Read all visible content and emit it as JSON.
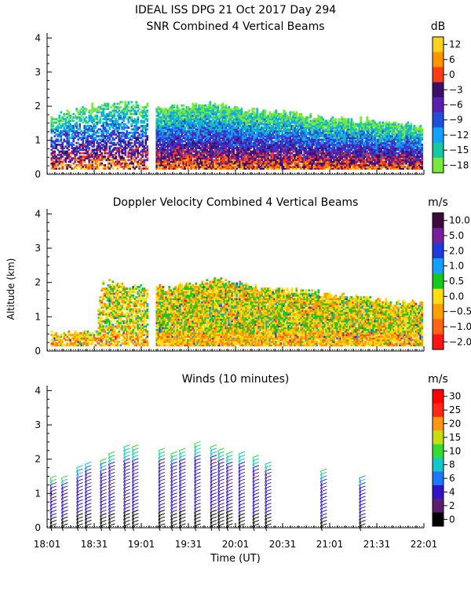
{
  "header": {
    "title_line1": "IDEAL ISS DPG  21 Oct 2017 Day 294"
  },
  "x_axis": {
    "label": "Time (UT)",
    "tick_labels": [
      "18:01",
      "18:31",
      "19:01",
      "19:31",
      "20:01",
      "20:31",
      "21:01",
      "21:31",
      "22:01"
    ],
    "range_hours": [
      18.0167,
      22.0167
    ]
  },
  "y_axis": {
    "label": "Altitude (km)",
    "tick_labels": [
      "0",
      "1",
      "2",
      "3",
      "4"
    ],
    "range_km": [
      0,
      4.1
    ]
  },
  "colors": {
    "snr": [
      "#78e83c",
      "#14c8a0",
      "#14a0ff",
      "#1e50dc",
      "#5a1eb4",
      "#3c0f6e",
      "#ff3c14",
      "#ff9600",
      "#ffd21e"
    ],
    "doppler": [
      "#ff1414",
      "#ff6414",
      "#ffa000",
      "#ffdc14",
      "#14c81e",
      "#14a0ff",
      "#1e3cdc",
      "#7a1ea0",
      "#3c0a3c"
    ],
    "winds": [
      "#000000",
      "#5a1e6e",
      "#3214c8",
      "#1e78ff",
      "#14c8c8",
      "#32dc32",
      "#c8dc14",
      "#ff9614",
      "#ff2814",
      "#ff0000"
    ]
  },
  "chart_data": [
    {
      "type": "heatmap",
      "title": "SNR Combined 4 Vertical Beams",
      "units": "dB",
      "xlabel": "Time (UT)",
      "ylabel": "Altitude (km)",
      "colorbar_labels": [
        "12",
        "6",
        "0",
        "−3",
        "−6",
        "−9",
        "−12",
        "−15",
        "−18"
      ],
      "coverage": {
        "segments_hours": [
          [
            18.05,
            19.08
          ],
          [
            19.17,
            22.0
          ]
        ],
        "top_altitude_km_by_hour": [
          [
            18.1,
            1.7
          ],
          [
            18.5,
            2.0
          ],
          [
            19.0,
            2.1
          ],
          [
            19.3,
            1.9
          ],
          [
            19.7,
            2.05
          ],
          [
            20.1,
            1.85
          ],
          [
            20.6,
            1.75
          ],
          [
            21.0,
            1.6
          ],
          [
            21.5,
            1.55
          ],
          [
            22.0,
            1.4
          ]
        ],
        "note": "values estimated from color fill"
      }
    },
    {
      "type": "heatmap",
      "title": "Doppler Velocity Combined 4 Vertical Beams",
      "units": "m/s",
      "xlabel": "Time (UT)",
      "ylabel": "Altitude (km)",
      "colorbar_labels": [
        "10.0",
        "5.0",
        "2.0",
        "1.0",
        "0.5",
        "0.0",
        "−0.5",
        "−1.0",
        "−2.0"
      ],
      "coverage": {
        "segments_hours": [
          [
            18.05,
            19.08
          ],
          [
            19.17,
            22.0
          ]
        ],
        "top_altitude_km_by_hour": [
          [
            18.1,
            0.5
          ],
          [
            18.5,
            0.5
          ],
          [
            18.6,
            2.0
          ],
          [
            19.0,
            1.9
          ],
          [
            19.3,
            1.8
          ],
          [
            19.8,
            2.05
          ],
          [
            20.3,
            1.8
          ],
          [
            20.8,
            1.7
          ],
          [
            21.4,
            1.5
          ],
          [
            22.0,
            1.35
          ]
        ],
        "note": "values estimated from color fill"
      }
    },
    {
      "type": "scatter",
      "title": "Winds (10 minutes)",
      "units": "m/s",
      "xlabel": "Time (UT)",
      "ylabel": "Altitude (km)",
      "colorbar_labels": [
        "30",
        "25",
        "20",
        "15",
        "10",
        "8",
        "6",
        "4",
        "2",
        "0"
      ],
      "profile_times_hours": [
        18.05,
        18.17,
        18.33,
        18.42,
        18.58,
        18.67,
        18.83,
        18.92,
        19.2,
        19.33,
        19.42,
        19.58,
        19.75,
        19.83,
        19.92,
        20.05,
        20.2,
        20.33,
        20.92,
        21.33
      ],
      "profile_top_km": [
        1.5,
        1.5,
        1.8,
        1.95,
        2.0,
        2.2,
        2.4,
        2.4,
        2.3,
        2.2,
        2.35,
        2.5,
        2.45,
        2.3,
        2.25,
        2.2,
        2.15,
        1.95,
        1.7,
        1.55
      ]
    }
  ]
}
